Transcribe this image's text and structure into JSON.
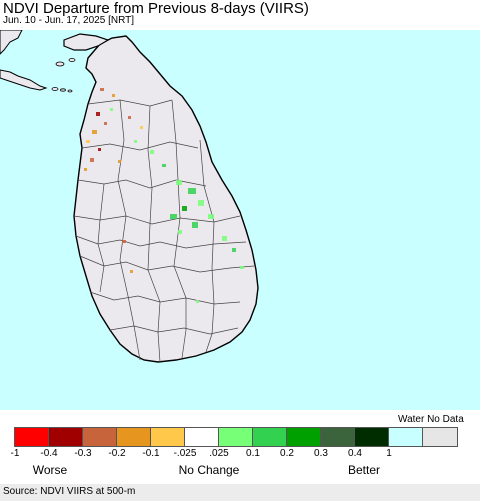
{
  "header": {
    "title": "NDVI Departure from Previous 8-days (VIIRS)",
    "subtitle": "Jun. 10 - Jun. 17, 2025 [NRT]"
  },
  "map": {
    "ocean_color": "#c9ffff",
    "land_color": "#ece9ee",
    "boundary_color": "#444444"
  },
  "legend": {
    "nodata_label": "Water No Data",
    "swatches": [
      "#ff0000",
      "#a00000",
      "#c8643c",
      "#e6961e",
      "#ffc84b",
      "#ffffff",
      "#78ff78",
      "#32d250",
      "#00a000",
      "#3c643c",
      "#002d00",
      "#c8ffff",
      "#e6e6e6"
    ],
    "ticks": [
      "-1",
      "-0.4",
      "-0.3",
      "-0.2",
      "-0.1",
      "-.025",
      ".025",
      "0.1",
      "0.2",
      "0.3",
      "0.4",
      "1"
    ],
    "worse_label": "Worse",
    "nochange_label": "No Change",
    "better_label": "Better"
  },
  "footer": {
    "source": "Source: NDVI VIIRS at 500-m"
  }
}
